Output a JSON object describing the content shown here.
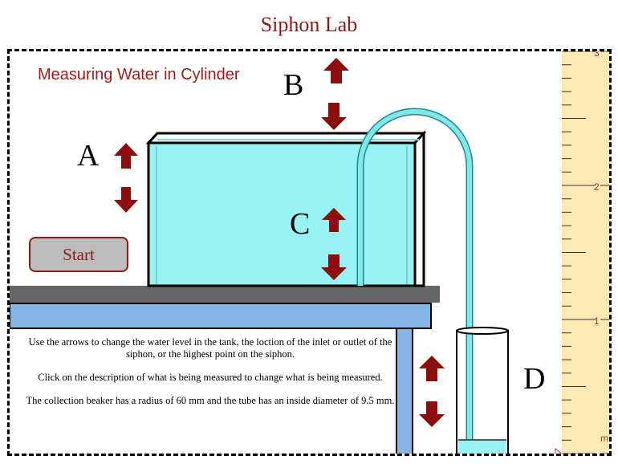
{
  "page": {
    "title": "Siphon Lab"
  },
  "lab": {
    "measure_label": "Measuring Water in Cylinder",
    "letters": {
      "a": "A",
      "b": "B",
      "c": "C",
      "d": "D"
    },
    "start_label": "Start",
    "instructions": [
      "Use the arrows to change the water level in the tank, the loction of the inlet or outlet of the siphon, or the highest point on the siphon.",
      "Click on the description of what is being measured to change what is being measured.",
      "The collection beaker has a radius of 60 mm and the tube has an inside diameter of 9.5 mm."
    ]
  },
  "ruler": {
    "labels": [
      "3",
      "2",
      "1",
      "m"
    ]
  },
  "colors": {
    "arrow": "#8b0d0d",
    "water": "#98f2f4",
    "tube": "#7fe3e6",
    "table_top": "#666666",
    "table_blue": "#85b5e3",
    "ruler": "#fde9b4",
    "accent": "#8b1a1a"
  }
}
